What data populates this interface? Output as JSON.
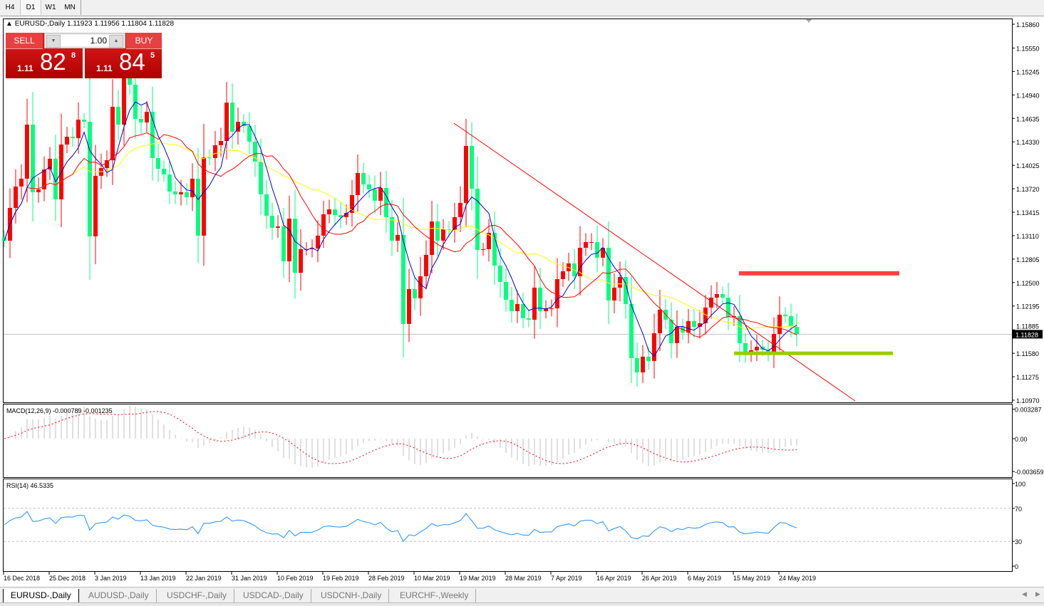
{
  "timeframes": [
    {
      "label": "H4",
      "active": false
    },
    {
      "label": "D1",
      "active": true
    },
    {
      "label": "W1",
      "active": false
    },
    {
      "label": "MN",
      "active": false
    }
  ],
  "chart_header": {
    "symbol": "EURUSD-,Daily",
    "open": "1.11923",
    "high": "1.11956",
    "low": "1.11804",
    "close": "1.11828"
  },
  "trade_panel": {
    "sell_label": "SELL",
    "buy_label": "BUY",
    "lot": "1.00",
    "sell_price": {
      "prefix": "1.11",
      "main": "82",
      "sup": "8"
    },
    "buy_price": {
      "prefix": "1.11",
      "main": "84",
      "sup": "5"
    }
  },
  "colors": {
    "bull": "#ff0000",
    "bear": "#00ff7f",
    "ma_fast": "#0000cc",
    "ma_mid": "#ff0000",
    "ma_slow": "#ffff00",
    "resistance": "#ff4040",
    "support": "#99cc00",
    "rsi": "#1e90ff",
    "macd_hist": "#c0c0c0",
    "macd_signal": "#ff0000"
  },
  "price_axis": [
    "1.15860",
    "1.15550",
    "1.15245",
    "1.14940",
    "1.14635",
    "1.14330",
    "1.14025",
    "1.13720",
    "1.13415",
    "1.13110",
    "1.12805",
    "1.12500",
    "1.12195",
    "1.11885",
    "1.11580",
    "1.11275",
    "1.10970"
  ],
  "current_price": "1.11828",
  "macd": {
    "label": "MACD(12,26,9) -0.000789 -0.001235",
    "axis": [
      "0.003287",
      "0.00",
      "-0.003659"
    ]
  },
  "rsi": {
    "label": "RSI(14) 46.5335",
    "axis": [
      "100",
      "70",
      "30",
      "0"
    ],
    "levels": [
      70,
      30
    ]
  },
  "date_axis": [
    "16 Dec 2018",
    "25 Dec 2018",
    "3 Jan 2019",
    "13 Jan 2019",
    "22 Jan 2019",
    "31 Jan 2019",
    "10 Feb 2019",
    "19 Feb 2019",
    "28 Feb 2019",
    "10 Mar 2019",
    "19 Mar 2019",
    "28 Mar 2019",
    "7 Apr 2019",
    "16 Apr 2019",
    "26 Apr 2019",
    "6 May 2019",
    "15 May 2019",
    "24 May 2019"
  ],
  "chart_data": {
    "type": "candlestick",
    "ylim": [
      1.1097,
      1.1586
    ],
    "closes": [
      1.13045,
      1.13471,
      1.13749,
      1.13851,
      1.14554,
      1.13675,
      1.13712,
      1.13971,
      1.1411,
      1.13582,
      1.14295,
      1.14397,
      1.14378,
      1.14619,
      1.14591,
      1.13101,
      1.13888,
      1.13989,
      1.14091,
      1.14786,
      1.14554,
      1.15203,
      1.15073,
      1.14628,
      1.14582,
      1.14721,
      1.14119,
      1.1398,
      1.13906,
      1.13684,
      1.13647,
      1.13675,
      1.1361,
      1.13851,
      1.1311,
      1.14128,
      1.14119,
      1.14286,
      1.14341,
      1.14841,
      1.14462,
      1.14591,
      1.14536,
      1.14332,
      1.14073,
      1.13647,
      1.13369,
      1.13212,
      1.1323,
      1.12776,
      1.13332,
      1.12628,
      1.12934,
      1.12934,
      1.12943,
      1.1311,
      1.13388,
      1.13452,
      1.13378,
      1.13351,
      1.13406,
      1.13638,
      1.13925,
      1.13776,
      1.13712,
      1.13564,
      1.1373,
      1.13351,
      1.13045,
      1.13119,
      1.11962,
      1.12415,
      1.12295,
      1.12582,
      1.1286,
      1.13295,
      1.13045,
      1.13193,
      1.13184,
      1.13351,
      1.13536,
      1.14277,
      1.13721,
      1.12925,
      1.12934,
      1.13147,
      1.12721,
      1.12508,
      1.12276,
      1.12128,
      1.12221,
      1.12036,
      1.12017,
      1.12434,
      1.12128,
      1.12165,
      1.12165,
      1.12545,
      1.12647,
      1.12749,
      1.12582,
      1.12952,
      1.13026,
      1.13026,
      1.12823,
      1.12952,
      1.12267,
      1.12434,
      1.12573,
      1.12221,
      1.11517,
      1.11332,
      1.11536,
      1.1148,
      1.11841,
      1.12147,
      1.12017,
      1.11712,
      1.11924,
      1.1185,
      1.11999,
      1.11924,
      1.11971,
      1.12175,
      1.12304,
      1.1235,
      1.12304,
      1.12054,
      1.12063,
      1.11712,
      1.11582,
      1.11619,
      1.11665,
      1.11628,
      1.11582,
      1.11832,
      1.12082,
      1.12063,
      1.11934,
      1.11828
    ],
    "last_open": 1.11923,
    "trendline": {
      "from": {
        "date": "19 Mar 2019",
        "price": 1.1465
      },
      "to_price_at_end": 1.1097
    },
    "resistance_zone": 1.1262,
    "support_zone": 1.1158
  },
  "tabs": [
    {
      "label": "EURUSD-,Daily",
      "active": true
    },
    {
      "label": "AUDUSD-,Daily",
      "active": false
    },
    {
      "label": "USDCHF-,Daily",
      "active": false
    },
    {
      "label": "USDCAD-,Daily",
      "active": false
    },
    {
      "label": "USDCNH-,Daily",
      "active": false
    },
    {
      "label": "EURCHF-,Weekly",
      "active": false
    }
  ]
}
